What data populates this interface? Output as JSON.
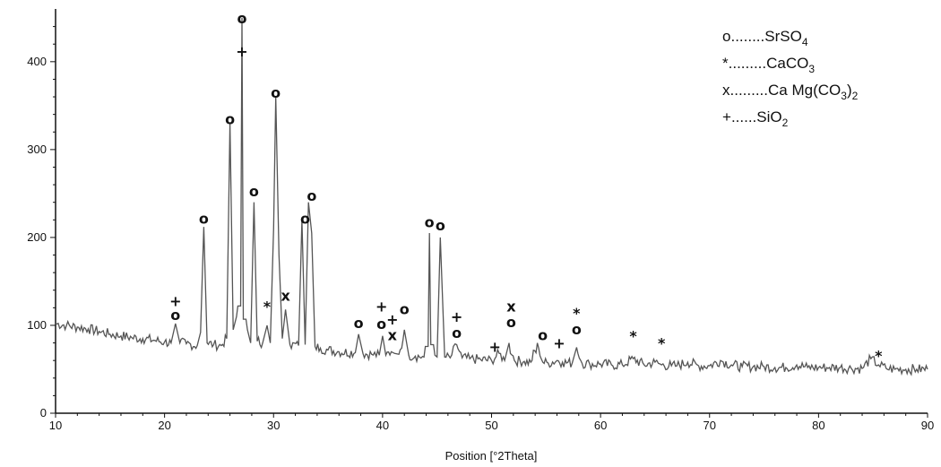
{
  "chart_data": {
    "type": "line",
    "title": "",
    "xlabel": "Position [°2Theta]",
    "ylabel": "",
    "xlim": [
      10,
      90
    ],
    "ylim": [
      0,
      460
    ],
    "x_ticks": [
      10,
      20,
      30,
      40,
      50,
      60,
      70,
      80,
      90
    ],
    "y_ticks": [
      0,
      100,
      200,
      300,
      400
    ],
    "grid": false,
    "legend_position": "top-right",
    "line_color": "#555555",
    "series": [
      {
        "x": [
          10,
          11,
          12,
          13,
          14,
          15,
          16,
          17,
          18,
          19,
          20,
          20.6,
          21.0,
          21.4,
          22,
          23,
          23.3,
          23.6,
          23.9,
          24.5,
          25.2,
          25.7,
          26.0,
          26.3,
          26.6,
          27.1,
          27.6,
          27.9,
          28.2,
          28.5,
          29.0,
          29.4,
          29.7,
          30.0,
          30.2,
          30.5,
          30.8,
          31.1,
          31.5,
          32.3,
          32.6,
          32.9,
          33.2,
          33.5,
          33.8,
          34.3,
          35,
          36,
          37.5,
          37.8,
          38.2,
          39,
          39.7,
          40.0,
          40.3,
          40.8,
          41.1,
          41.5,
          42.0,
          42.4,
          43,
          43.8,
          44.3,
          44.8,
          45.0,
          45.3,
          45.7,
          46.2,
          46.8,
          47.3,
          48,
          49,
          50,
          50.7,
          51.2,
          51.6,
          52.1,
          53,
          53.6,
          54.2,
          54.7,
          55.2,
          56,
          56.5,
          57.4,
          57.8,
          58.3,
          59,
          60,
          61,
          62,
          63,
          64,
          65,
          65.6,
          66.5,
          67,
          68,
          69,
          70,
          71,
          72,
          73,
          74,
          75,
          76,
          77,
          78,
          79,
          80,
          81,
          82,
          83,
          84,
          84.8,
          85.5,
          86.2,
          87,
          88,
          89,
          90
        ],
        "values": [
          102,
          100,
          98,
          96,
          93,
          90,
          88,
          86,
          85,
          83,
          81,
          80,
          102,
          80,
          79,
          77,
          92,
          212,
          80,
          78,
          77,
          85,
          330,
          95,
          110,
          450,
          95,
          80,
          240,
          82,
          80,
          100,
          80,
          210,
          360,
          180,
          85,
          118,
          78,
          77,
          220,
          78,
          240,
          205,
          76,
          74,
          72,
          70,
          69,
          90,
          68,
          67,
          66,
          88,
          66,
          70,
          68,
          67,
          95,
          66,
          65,
          64,
          205,
          66,
          64,
          200,
          64,
          63,
          78,
          63,
          62,
          61,
          60,
          68,
          60,
          80,
          60,
          59,
          58,
          80,
          58,
          57,
          60,
          58,
          57,
          75,
          57,
          56,
          56,
          55,
          55,
          62,
          55,
          58,
          55,
          54,
          54,
          58,
          54,
          54,
          60,
          55,
          53,
          53,
          53,
          52,
          52,
          55,
          52,
          52,
          52,
          52,
          51,
          51,
          62,
          55,
          51,
          50,
          50,
          50,
          50
        ]
      }
    ],
    "peak_markers": [
      {
        "symbol": "+",
        "x": 21.0,
        "y": 128
      },
      {
        "symbol": "o",
        "x": 21.0,
        "y": 112
      },
      {
        "symbol": "o",
        "x": 23.6,
        "y": 222
      },
      {
        "symbol": "o",
        "x": 26.0,
        "y": 335
      },
      {
        "symbol": "o",
        "x": 27.1,
        "y": 450
      },
      {
        "symbol": "+",
        "x": 27.1,
        "y": 412
      },
      {
        "symbol": "o",
        "x": 28.2,
        "y": 253
      },
      {
        "symbol": "*",
        "x": 29.4,
        "y": 122
      },
      {
        "symbol": "o",
        "x": 30.2,
        "y": 365
      },
      {
        "symbol": "x",
        "x": 31.1,
        "y": 134
      },
      {
        "symbol": "o",
        "x": 32.9,
        "y": 222
      },
      {
        "symbol": "o",
        "x": 33.5,
        "y": 248
      },
      {
        "symbol": "o",
        "x": 37.8,
        "y": 103
      },
      {
        "symbol": "+",
        "x": 39.9,
        "y": 122
      },
      {
        "symbol": "o",
        "x": 39.9,
        "y": 102
      },
      {
        "symbol": "+",
        "x": 40.9,
        "y": 107
      },
      {
        "symbol": "x",
        "x": 40.9,
        "y": 89
      },
      {
        "symbol": "o",
        "x": 42.0,
        "y": 119
      },
      {
        "symbol": "o",
        "x": 44.3,
        "y": 218
      },
      {
        "symbol": "o",
        "x": 45.3,
        "y": 214
      },
      {
        "symbol": "+",
        "x": 46.8,
        "y": 110
      },
      {
        "symbol": "o",
        "x": 46.8,
        "y": 92
      },
      {
        "symbol": "+",
        "x": 50.3,
        "y": 76
      },
      {
        "symbol": "x",
        "x": 51.8,
        "y": 122
      },
      {
        "symbol": "o",
        "x": 51.8,
        "y": 104
      },
      {
        "symbol": "o",
        "x": 54.7,
        "y": 89
      },
      {
        "symbol": "+",
        "x": 56.2,
        "y": 80
      },
      {
        "symbol": "*",
        "x": 57.8,
        "y": 114
      },
      {
        "symbol": "o",
        "x": 57.8,
        "y": 96
      },
      {
        "symbol": "*",
        "x": 63.0,
        "y": 88
      },
      {
        "symbol": "*",
        "x": 65.6,
        "y": 80
      },
      {
        "symbol": "*",
        "x": 85.5,
        "y": 66
      }
    ],
    "legend": [
      {
        "symbol": "o",
        "dots": "........",
        "name": "SrSO",
        "sub": "4",
        "tail": "",
        "tail_sub": ""
      },
      {
        "symbol": "*",
        "dots": ".........",
        "name": "CaCO",
        "sub": "3",
        "tail": "",
        "tail_sub": ""
      },
      {
        "symbol": "x",
        "dots": ".........",
        "name": "Ca Mg(CO",
        "sub": "3",
        "tail": ")",
        "tail_sub": "2"
      },
      {
        "symbol": "+",
        "dots": "......",
        "name": "SiO",
        "sub": "2",
        "tail": "",
        "tail_sub": ""
      }
    ]
  }
}
